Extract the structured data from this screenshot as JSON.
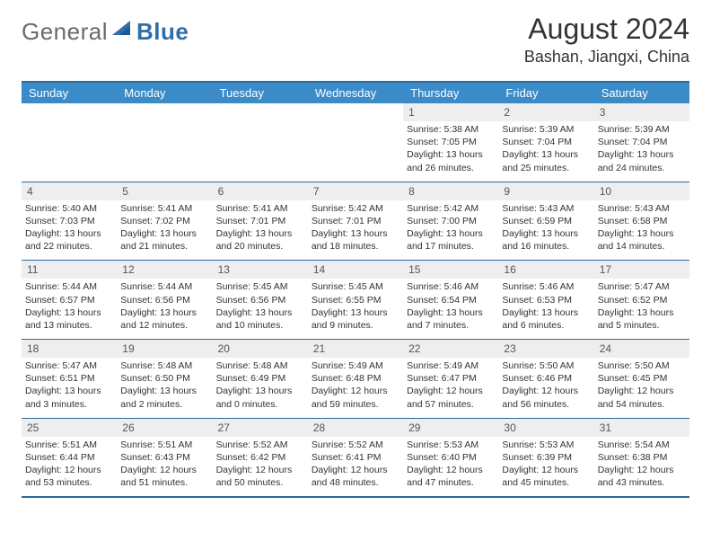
{
  "logo": {
    "general": "General",
    "blue": "Blue"
  },
  "header": {
    "month": "August 2024",
    "location": "Bashan, Jiangxi, China"
  },
  "colors": {
    "header_bg": "#3b8bc9",
    "header_border": "#2b6aa0",
    "daynum_bg": "#eeeeee",
    "text": "#333333",
    "logo_gray": "#6a6a6a",
    "logo_blue": "#2f6fa8"
  },
  "font": {
    "family": "Arial",
    "title_size": 32,
    "location_size": 18,
    "th_size": 13,
    "cell_size": 10.5
  },
  "weekdays": [
    "Sunday",
    "Monday",
    "Tuesday",
    "Wednesday",
    "Thursday",
    "Friday",
    "Saturday"
  ],
  "weeks": [
    [
      {
        "empty": true
      },
      {
        "empty": true
      },
      {
        "empty": true
      },
      {
        "empty": true
      },
      {
        "n": "1",
        "sr": "5:38 AM",
        "ss": "7:05 PM",
        "dl": "13 hours and 26 minutes."
      },
      {
        "n": "2",
        "sr": "5:39 AM",
        "ss": "7:04 PM",
        "dl": "13 hours and 25 minutes."
      },
      {
        "n": "3",
        "sr": "5:39 AM",
        "ss": "7:04 PM",
        "dl": "13 hours and 24 minutes."
      }
    ],
    [
      {
        "n": "4",
        "sr": "5:40 AM",
        "ss": "7:03 PM",
        "dl": "13 hours and 22 minutes."
      },
      {
        "n": "5",
        "sr": "5:41 AM",
        "ss": "7:02 PM",
        "dl": "13 hours and 21 minutes."
      },
      {
        "n": "6",
        "sr": "5:41 AM",
        "ss": "7:01 PM",
        "dl": "13 hours and 20 minutes."
      },
      {
        "n": "7",
        "sr": "5:42 AM",
        "ss": "7:01 PM",
        "dl": "13 hours and 18 minutes."
      },
      {
        "n": "8",
        "sr": "5:42 AM",
        "ss": "7:00 PM",
        "dl": "13 hours and 17 minutes."
      },
      {
        "n": "9",
        "sr": "5:43 AM",
        "ss": "6:59 PM",
        "dl": "13 hours and 16 minutes."
      },
      {
        "n": "10",
        "sr": "5:43 AM",
        "ss": "6:58 PM",
        "dl": "13 hours and 14 minutes."
      }
    ],
    [
      {
        "n": "11",
        "sr": "5:44 AM",
        "ss": "6:57 PM",
        "dl": "13 hours and 13 minutes."
      },
      {
        "n": "12",
        "sr": "5:44 AM",
        "ss": "6:56 PM",
        "dl": "13 hours and 12 minutes."
      },
      {
        "n": "13",
        "sr": "5:45 AM",
        "ss": "6:56 PM",
        "dl": "13 hours and 10 minutes."
      },
      {
        "n": "14",
        "sr": "5:45 AM",
        "ss": "6:55 PM",
        "dl": "13 hours and 9 minutes."
      },
      {
        "n": "15",
        "sr": "5:46 AM",
        "ss": "6:54 PM",
        "dl": "13 hours and 7 minutes."
      },
      {
        "n": "16",
        "sr": "5:46 AM",
        "ss": "6:53 PM",
        "dl": "13 hours and 6 minutes."
      },
      {
        "n": "17",
        "sr": "5:47 AM",
        "ss": "6:52 PM",
        "dl": "13 hours and 5 minutes."
      }
    ],
    [
      {
        "n": "18",
        "sr": "5:47 AM",
        "ss": "6:51 PM",
        "dl": "13 hours and 3 minutes."
      },
      {
        "n": "19",
        "sr": "5:48 AM",
        "ss": "6:50 PM",
        "dl": "13 hours and 2 minutes."
      },
      {
        "n": "20",
        "sr": "5:48 AM",
        "ss": "6:49 PM",
        "dl": "13 hours and 0 minutes."
      },
      {
        "n": "21",
        "sr": "5:49 AM",
        "ss": "6:48 PM",
        "dl": "12 hours and 59 minutes."
      },
      {
        "n": "22",
        "sr": "5:49 AM",
        "ss": "6:47 PM",
        "dl": "12 hours and 57 minutes."
      },
      {
        "n": "23",
        "sr": "5:50 AM",
        "ss": "6:46 PM",
        "dl": "12 hours and 56 minutes."
      },
      {
        "n": "24",
        "sr": "5:50 AM",
        "ss": "6:45 PM",
        "dl": "12 hours and 54 minutes."
      }
    ],
    [
      {
        "n": "25",
        "sr": "5:51 AM",
        "ss": "6:44 PM",
        "dl": "12 hours and 53 minutes."
      },
      {
        "n": "26",
        "sr": "5:51 AM",
        "ss": "6:43 PM",
        "dl": "12 hours and 51 minutes."
      },
      {
        "n": "27",
        "sr": "5:52 AM",
        "ss": "6:42 PM",
        "dl": "12 hours and 50 minutes."
      },
      {
        "n": "28",
        "sr": "5:52 AM",
        "ss": "6:41 PM",
        "dl": "12 hours and 48 minutes."
      },
      {
        "n": "29",
        "sr": "5:53 AM",
        "ss": "6:40 PM",
        "dl": "12 hours and 47 minutes."
      },
      {
        "n": "30",
        "sr": "5:53 AM",
        "ss": "6:39 PM",
        "dl": "12 hours and 45 minutes."
      },
      {
        "n": "31",
        "sr": "5:54 AM",
        "ss": "6:38 PM",
        "dl": "12 hours and 43 minutes."
      }
    ]
  ],
  "labels": {
    "sunrise": "Sunrise:",
    "sunset": "Sunset:",
    "daylight": "Daylight:"
  }
}
